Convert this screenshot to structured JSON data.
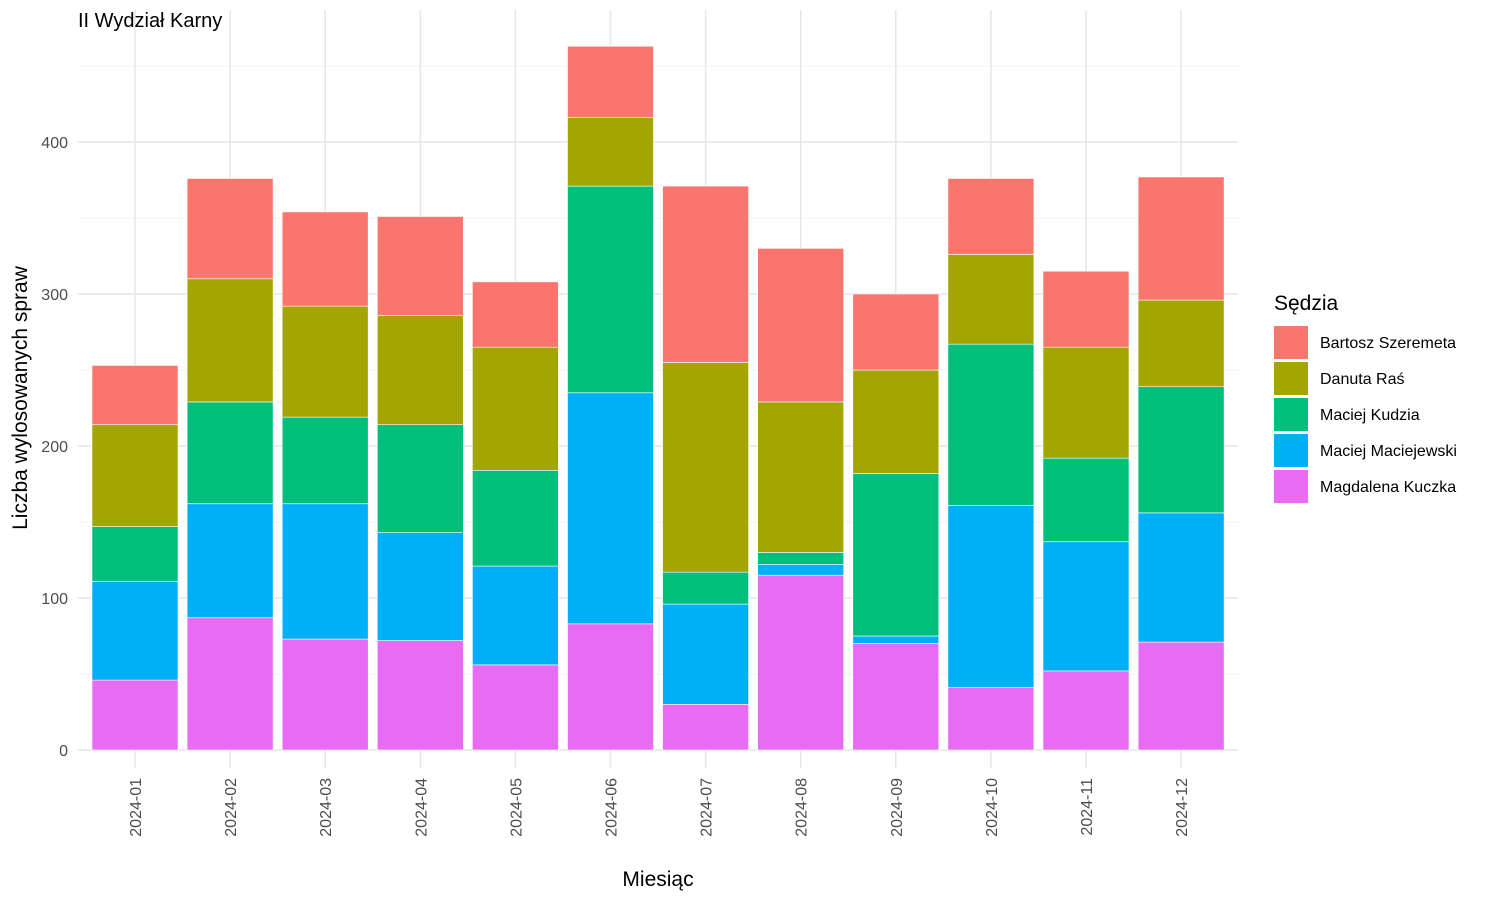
{
  "chart_data": {
    "type": "bar",
    "stacked": true,
    "title": "II Wydział Karny",
    "xlabel": "Miesiąc",
    "ylabel": "Liczba wylosowanych spraw",
    "ylim": [
      0,
      465
    ],
    "yticks": [
      0,
      100,
      200,
      300,
      400
    ],
    "grid": true,
    "legend": {
      "title": "Sędzia",
      "placement": "right"
    },
    "categories": [
      "2024-01",
      "2024-02",
      "2024-03",
      "2024-04",
      "2024-05",
      "2024-06",
      "2024-07",
      "2024-08",
      "2024-09",
      "2024-10",
      "2024-11",
      "2024-12"
    ],
    "series": [
      {
        "name": "Magdalena Kuczka",
        "color": "#E76BF3",
        "values": [
          46,
          87,
          73,
          72,
          56,
          83,
          30,
          115,
          70,
          41,
          52,
          71
        ]
      },
      {
        "name": "Maciej Maciejewski",
        "color": "#00B0F6",
        "values": [
          65,
          75,
          89,
          71,
          65,
          152,
          66,
          7,
          5,
          120,
          85,
          85
        ]
      },
      {
        "name": "Maciej Kudzia",
        "color": "#00BF7D",
        "values": [
          36,
          67,
          57,
          71,
          63,
          136,
          21,
          8,
          107,
          106,
          55,
          83
        ]
      },
      {
        "name": "Danuta Raś",
        "color": "#A3A500",
        "values": [
          67,
          81,
          73,
          72,
          81,
          45,
          138,
          99,
          68,
          59,
          73,
          57
        ]
      },
      {
        "name": "Bartosz Szeremeta",
        "color": "#F8766D",
        "values": [
          39,
          66,
          62,
          65,
          43,
          47,
          116,
          101,
          50,
          50,
          50,
          81
        ]
      }
    ]
  }
}
